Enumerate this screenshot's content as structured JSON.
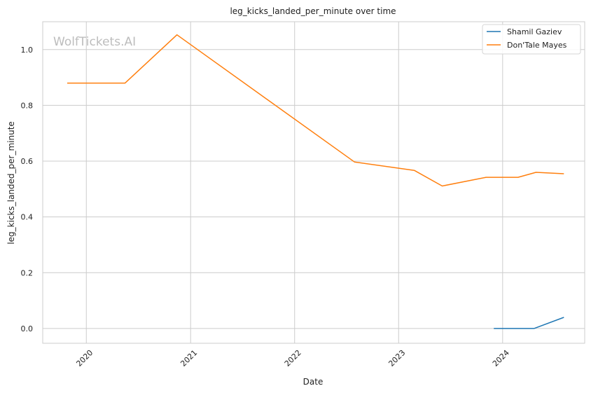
{
  "chart_data": {
    "type": "line",
    "title": "leg_kicks_landed_per_minute over time",
    "xlabel": "Date",
    "ylabel": "leg_kicks_landed_per_minute",
    "watermark": "WolfTickets.AI",
    "xlim": [
      "2019-08-01",
      "2024-10-15"
    ],
    "ylim": [
      -0.053,
      1.1
    ],
    "x_ticks": [
      "2020-01-01",
      "2021-01-01",
      "2022-01-01",
      "2023-01-01",
      "2024-01-01"
    ],
    "x_tick_labels": [
      "2020",
      "2021",
      "2022",
      "2023",
      "2024"
    ],
    "y_ticks": [
      0.0,
      0.2,
      0.4,
      0.6,
      0.8,
      1.0
    ],
    "y_tick_labels": [
      "0.0",
      "0.2",
      "0.4",
      "0.6",
      "0.8",
      "1.0"
    ],
    "grid": true,
    "legend_position": "top-right",
    "series": [
      {
        "name": "Shamil Gaziev",
        "color": "#1f77b4",
        "points": [
          {
            "x": "2023-12-01",
            "y": 0.0
          },
          {
            "x": "2024-03-01",
            "y": 0.0
          },
          {
            "x": "2024-04-20",
            "y": 0.0
          },
          {
            "x": "2024-08-03",
            "y": 0.04
          }
        ]
      },
      {
        "name": "Don'Tale Mayes",
        "color": "#ff7f0e",
        "points": [
          {
            "x": "2019-10-26",
            "y": 0.88
          },
          {
            "x": "2020-05-16",
            "y": 0.88
          },
          {
            "x": "2020-11-14",
            "y": 1.053
          },
          {
            "x": "2022-07-30",
            "y": 0.597
          },
          {
            "x": "2023-02-25",
            "y": 0.567
          },
          {
            "x": "2023-06-03",
            "y": 0.511
          },
          {
            "x": "2023-11-04",
            "y": 0.542
          },
          {
            "x": "2024-02-24",
            "y": 0.542
          },
          {
            "x": "2024-04-27",
            "y": 0.56
          },
          {
            "x": "2024-08-03",
            "y": 0.555
          }
        ]
      }
    ]
  }
}
